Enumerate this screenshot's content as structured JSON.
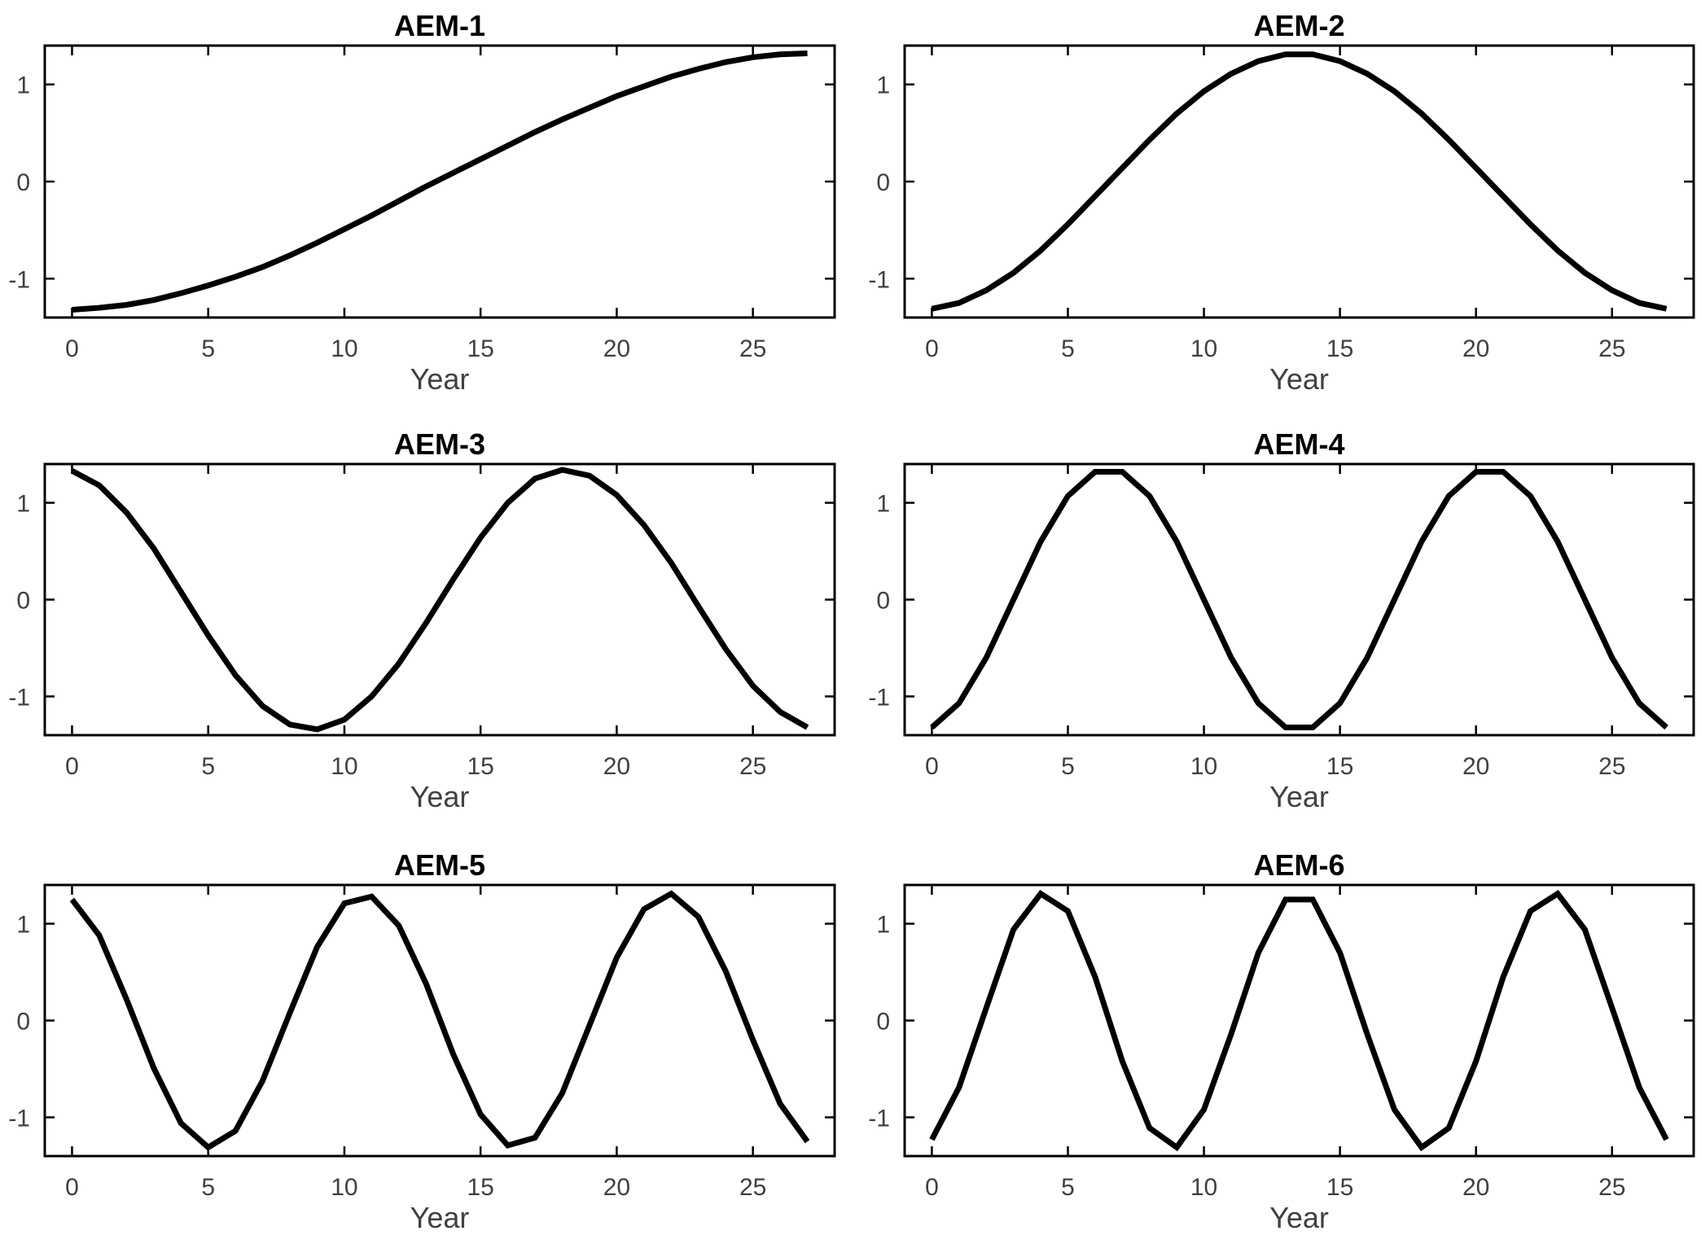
{
  "chart_data": [
    {
      "type": "line",
      "title": "AEM-1",
      "xlabel": "Year",
      "ylabel": "",
      "xlim": [
        -1,
        28
      ],
      "ylim": [
        -1.4,
        1.4
      ],
      "xticks": [
        0,
        5,
        10,
        15,
        20,
        25
      ],
      "yticks": [
        -1,
        0,
        1
      ],
      "grid": false,
      "x": [
        0,
        1,
        2,
        3,
        4,
        5,
        6,
        7,
        8,
        9,
        10,
        11,
        12,
        13,
        14,
        15,
        16,
        17,
        18,
        19,
        20,
        21,
        22,
        23,
        24,
        25,
        26,
        27
      ],
      "series": [
        {
          "values": [
            -1.32,
            -1.3,
            -1.27,
            -1.22,
            -1.15,
            -1.07,
            -0.98,
            -0.88,
            -0.76,
            -0.63,
            -0.49,
            -0.35,
            -0.2,
            -0.05,
            0.09,
            0.23,
            0.37,
            0.51,
            0.64,
            0.76,
            0.88,
            0.98,
            1.08,
            1.16,
            1.23,
            1.28,
            1.31,
            1.32
          ]
        }
      ]
    },
    {
      "type": "line",
      "title": "AEM-2",
      "xlabel": "Year",
      "ylabel": "",
      "xlim": [
        -1,
        28
      ],
      "ylim": [
        -1.4,
        1.4
      ],
      "xticks": [
        0,
        5,
        10,
        15,
        20,
        25
      ],
      "yticks": [
        -1,
        0,
        1
      ],
      "grid": false,
      "x": [
        0,
        1,
        2,
        3,
        4,
        5,
        6,
        7,
        8,
        9,
        10,
        11,
        12,
        13,
        14,
        15,
        16,
        17,
        18,
        19,
        20,
        21,
        22,
        23,
        24,
        25,
        26,
        27
      ],
      "series": [
        {
          "values": [
            -1.31,
            -1.25,
            -1.12,
            -0.94,
            -0.71,
            -0.44,
            -0.15,
            0.14,
            0.43,
            0.7,
            0.93,
            1.11,
            1.24,
            1.31,
            1.31,
            1.24,
            1.11,
            0.93,
            0.7,
            0.43,
            0.14,
            -0.15,
            -0.44,
            -0.71,
            -0.94,
            -1.12,
            -1.25,
            -1.31
          ]
        }
      ]
    },
    {
      "type": "line",
      "title": "AEM-3",
      "xlabel": "Year",
      "ylabel": "",
      "xlim": [
        -1,
        28
      ],
      "ylim": [
        -1.4,
        1.4
      ],
      "xticks": [
        0,
        5,
        10,
        15,
        20,
        25
      ],
      "yticks": [
        -1,
        0,
        1
      ],
      "grid": false,
      "x": [
        0,
        1,
        2,
        3,
        4,
        5,
        6,
        7,
        8,
        9,
        10,
        11,
        12,
        13,
        14,
        15,
        16,
        17,
        18,
        19,
        20,
        21,
        22,
        23,
        24,
        25,
        26,
        27
      ],
      "series": [
        {
          "values": [
            1.33,
            1.18,
            0.9,
            0.53,
            0.08,
            -0.37,
            -0.78,
            -1.1,
            -1.29,
            -1.34,
            -1.24,
            -1.0,
            -0.66,
            -0.24,
            0.21,
            0.64,
            1.0,
            1.25,
            1.34,
            1.28,
            1.08,
            0.77,
            0.38,
            -0.07,
            -0.51,
            -0.89,
            -1.16,
            -1.32
          ]
        }
      ]
    },
    {
      "type": "line",
      "title": "AEM-4",
      "xlabel": "Year",
      "ylabel": "",
      "xlim": [
        -1,
        28
      ],
      "ylim": [
        -1.4,
        1.4
      ],
      "xticks": [
        0,
        5,
        10,
        15,
        20,
        25
      ],
      "yticks": [
        -1,
        0,
        1
      ],
      "grid": false,
      "x": [
        0,
        1,
        2,
        3,
        4,
        5,
        6,
        7,
        8,
        9,
        10,
        11,
        12,
        13,
        14,
        15,
        16,
        17,
        18,
        19,
        20,
        21,
        22,
        23,
        24,
        25,
        26,
        27
      ],
      "series": [
        {
          "values": [
            -1.32,
            -1.07,
            -0.6,
            0.0,
            0.6,
            1.07,
            1.32,
            1.32,
            1.07,
            0.6,
            0.0,
            -0.6,
            -1.07,
            -1.32,
            -1.32,
            -1.07,
            -0.6,
            0.0,
            0.6,
            1.07,
            1.32,
            1.32,
            1.07,
            0.6,
            0.0,
            -0.6,
            -1.07,
            -1.32
          ]
        }
      ]
    },
    {
      "type": "line",
      "title": "AEM-5",
      "xlabel": "Year",
      "ylabel": "",
      "xlim": [
        -1,
        28
      ],
      "ylim": [
        -1.4,
        1.4
      ],
      "xticks": [
        0,
        5,
        10,
        15,
        20,
        25
      ],
      "yticks": [
        -1,
        0,
        1
      ],
      "grid": false,
      "x": [
        0,
        1,
        2,
        3,
        4,
        5,
        6,
        7,
        8,
        9,
        10,
        11,
        12,
        13,
        14,
        15,
        16,
        17,
        18,
        19,
        20,
        21,
        22,
        23,
        24,
        25,
        26,
        27
      ],
      "series": [
        {
          "values": [
            1.25,
            0.88,
            0.22,
            -0.49,
            -1.06,
            -1.31,
            -1.14,
            -0.62,
            0.08,
            0.76,
            1.21,
            1.28,
            0.98,
            0.38,
            -0.35,
            -0.97,
            -1.29,
            -1.21,
            -0.75,
            -0.05,
            0.65,
            1.15,
            1.31,
            1.07,
            0.51,
            -0.2,
            -0.86,
            -1.25
          ]
        }
      ]
    },
    {
      "type": "line",
      "title": "AEM-6",
      "xlabel": "Year",
      "ylabel": "",
      "xlim": [
        -1,
        28
      ],
      "ylim": [
        -1.4,
        1.4
      ],
      "xticks": [
        0,
        5,
        10,
        15,
        20,
        25
      ],
      "yticks": [
        -1,
        0,
        1
      ],
      "grid": false,
      "x": [
        0,
        1,
        2,
        3,
        4,
        5,
        6,
        7,
        8,
        9,
        10,
        11,
        12,
        13,
        14,
        15,
        16,
        17,
        18,
        19,
        20,
        21,
        22,
        23,
        24,
        25,
        26,
        27
      ],
      "series": [
        {
          "values": [
            -1.23,
            -0.69,
            0.13,
            0.94,
            1.31,
            1.13,
            0.45,
            -0.42,
            -1.11,
            -1.31,
            -0.92,
            -0.14,
            0.7,
            1.25,
            1.25,
            0.7,
            -0.14,
            -0.92,
            -1.31,
            -1.11,
            -0.42,
            0.45,
            1.13,
            1.31,
            0.94,
            0.13,
            -0.69,
            -1.23
          ]
        }
      ]
    }
  ],
  "colors": {
    "line": "#000000",
    "axes": "#000000",
    "tick_text": "#404040",
    "background": "#ffffff"
  }
}
